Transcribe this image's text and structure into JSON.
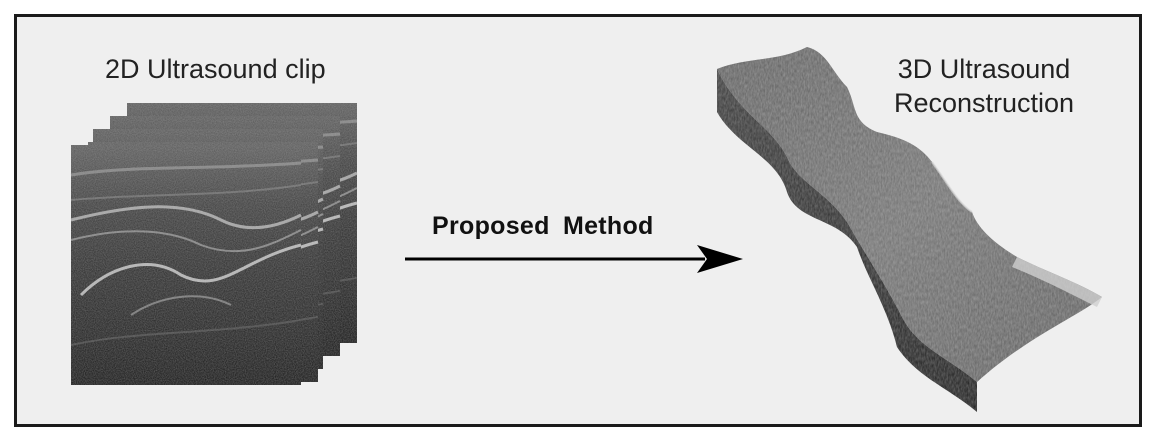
{
  "left_title": "2D Ultrasound clip",
  "method_label": "Proposed  Method",
  "right_title_line1": "3D Ultrasound",
  "right_title_line2": "Reconstruction",
  "colors": {
    "background": "#efefef",
    "border": "#1a1a1a",
    "arrow": "#000000",
    "text": "#222222"
  }
}
